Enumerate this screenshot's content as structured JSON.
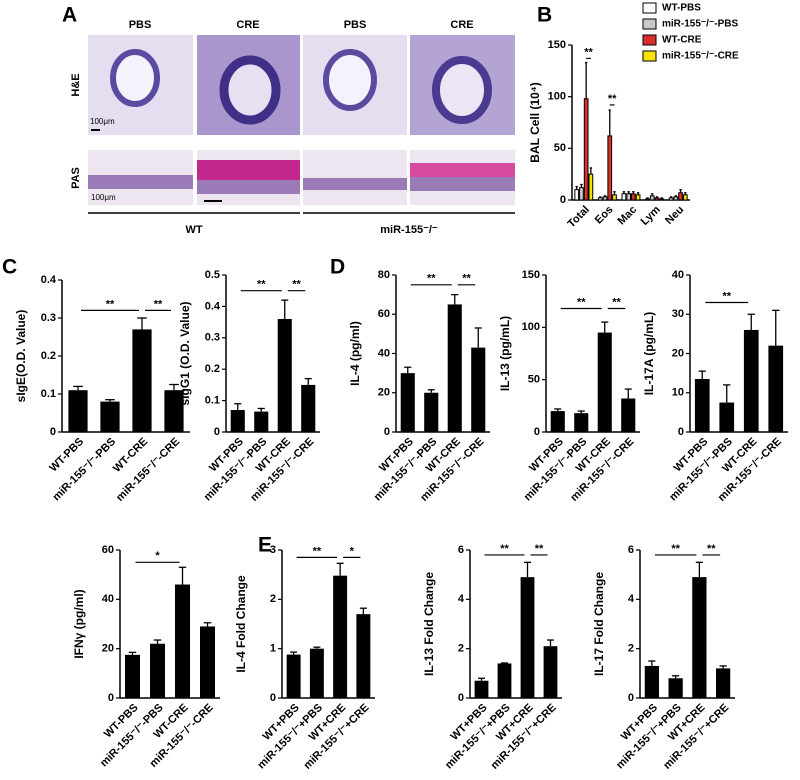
{
  "panels": [
    "A",
    "B",
    "C",
    "D",
    "E"
  ],
  "panel_a": {
    "columns": [
      "PBS",
      "CRE",
      "PBS",
      "CRE"
    ],
    "rows": [
      "H&E",
      "PAS"
    ],
    "scale_bars": [
      "100μm",
      "100μm"
    ],
    "groups": [
      "WT",
      "miR-155⁻/⁻"
    ]
  },
  "chart_data": [
    {
      "type": "bar",
      "ylabel": "BAL Cell (10⁴)",
      "categories": [
        "Total",
        "Eos",
        "Mac",
        "Lym",
        "Neu"
      ],
      "series": [
        {
          "name": "WT-PBS",
          "color": "#ffffff",
          "values": [
            10,
            2,
            6,
            1,
            2
          ],
          "errors": [
            3,
            1,
            2,
            1,
            1
          ]
        },
        {
          "name": "miR-155⁻/⁻-PBS",
          "color": "#c8c8c8",
          "values": [
            12,
            3,
            6,
            4,
            3
          ],
          "errors": [
            3,
            1,
            2,
            2,
            1
          ]
        },
        {
          "name": "WT-CRE",
          "color": "#d9302c",
          "values": [
            98,
            62,
            6,
            2,
            7
          ],
          "errors": [
            35,
            25,
            2,
            1,
            3
          ]
        },
        {
          "name": "miR-155⁻/⁻-CRE",
          "color": "#f5e400",
          "values": [
            25,
            5,
            5,
            1,
            5
          ],
          "errors": [
            6,
            3,
            2,
            1,
            2
          ]
        }
      ],
      "ylim": [
        0,
        150
      ],
      "yticks": [
        0,
        50,
        100,
        150
      ],
      "annotations": [
        {
          "category": "Total",
          "from": "WT-CRE",
          "to": "miR-155⁻/⁻-CRE",
          "y": 137,
          "label": "**"
        },
        {
          "category": "Eos",
          "from": "WT-CRE",
          "to": "miR-155⁻/⁻-CRE",
          "y": 92,
          "label": "**"
        }
      ]
    },
    {
      "type": "bar",
      "ylabel": "sIgE(O.D. Value)",
      "categories": [
        "WT-PBS",
        "miR-155⁻/⁻-PBS",
        "WT-CRE",
        "miR-155⁻/⁻-CRE"
      ],
      "values": [
        0.11,
        0.08,
        0.27,
        0.11
      ],
      "errors": [
        0.01,
        0.005,
        0.03,
        0.015
      ],
      "color": "#000000",
      "ylim": [
        0,
        0.4
      ],
      "yticks": [
        0,
        0.1,
        0.2,
        0.3,
        0.4
      ],
      "annotations": [
        {
          "from": "WT-PBS",
          "to": "WT-CRE",
          "y": 0.32,
          "label": "**"
        },
        {
          "from": "WT-CRE",
          "to": "miR-155⁻/⁻-CRE",
          "y": 0.32,
          "label": "**"
        }
      ]
    },
    {
      "type": "bar",
      "ylabel": "sIgG1 (O.D. Value)",
      "categories": [
        "WT-PBS",
        "miR-155⁻/⁻-PBS",
        "WT-CRE",
        "miR-155⁻/⁻-CRE"
      ],
      "values": [
        0.07,
        0.065,
        0.36,
        0.15
      ],
      "errors": [
        0.02,
        0.01,
        0.06,
        0.02
      ],
      "color": "#000000",
      "ylim": [
        0,
        0.5
      ],
      "yticks": [
        0,
        0.1,
        0.2,
        0.3,
        0.4,
        0.5
      ],
      "annotations": [
        {
          "from": "WT-PBS",
          "to": "WT-CRE",
          "y": 0.45,
          "label": "**"
        },
        {
          "from": "WT-CRE",
          "to": "miR-155⁻/⁻-CRE",
          "y": 0.45,
          "label": "**"
        }
      ]
    },
    {
      "type": "bar",
      "ylabel": "IL-4 (pg/ml)",
      "categories": [
        "WT-PBS",
        "miR-155⁻/⁻-PBS",
        "WT-CRE",
        "miR-155⁻/⁻-CRE"
      ],
      "values": [
        30,
        20,
        65,
        43
      ],
      "errors": [
        3,
        1.5,
        5,
        10
      ],
      "color": "#000000",
      "ylim": [
        0,
        80
      ],
      "yticks": [
        0,
        20,
        40,
        60,
        80
      ],
      "annotations": [
        {
          "from": "WT-PBS",
          "to": "WT-CRE",
          "y": 75,
          "label": "**"
        },
        {
          "from": "WT-CRE",
          "to": "miR-155⁻/⁻-CRE",
          "y": 75,
          "label": "**"
        }
      ]
    },
    {
      "type": "bar",
      "ylabel": "IL-13 (pg/mL)",
      "categories": [
        "WT-PBS",
        "miR-155⁻/⁻-PBS",
        "WT-CRE",
        "miR-155⁻/⁻-CRE"
      ],
      "values": [
        20,
        18,
        95,
        32
      ],
      "errors": [
        2,
        2,
        10,
        9
      ],
      "color": "#000000",
      "ylim": [
        0,
        150
      ],
      "yticks": [
        0,
        50,
        100,
        150
      ],
      "annotations": [
        {
          "from": "WT-PBS",
          "to": "WT-CRE",
          "y": 118,
          "label": "**"
        },
        {
          "from": "WT-CRE",
          "to": "miR-155⁻/⁻-CRE",
          "y": 118,
          "label": "**"
        }
      ]
    },
    {
      "type": "bar",
      "ylabel": "IL-17A (pg/mL)",
      "categories": [
        "WT-PBS",
        "miR-155⁻/⁻-PBS",
        "WT-CRE",
        "miR-155⁻/⁻-CRE"
      ],
      "values": [
        13.5,
        7.5,
        26,
        22
      ],
      "errors": [
        2,
        4.5,
        4,
        9
      ],
      "color": "#000000",
      "ylim": [
        0,
        40
      ],
      "yticks": [
        0,
        10,
        20,
        30,
        40
      ],
      "annotations": [
        {
          "from": "WT-PBS",
          "to": "WT-CRE",
          "y": 33,
          "label": "**"
        }
      ]
    },
    {
      "type": "bar",
      "ylabel": "IFNγ (pg/ml)",
      "categories": [
        "WT-PBS",
        "miR-155⁻/⁻-PBS",
        "WT-CRE",
        "miR-155⁻/⁻-CRE"
      ],
      "values": [
        17.5,
        22,
        46,
        29
      ],
      "errors": [
        1,
        1.5,
        7,
        1.5
      ],
      "color": "#000000",
      "ylim": [
        0,
        60
      ],
      "yticks": [
        0,
        20,
        40,
        60
      ],
      "annotations": [
        {
          "from": "WT-PBS",
          "to": "WT-CRE",
          "y": 55,
          "label": "*"
        }
      ]
    },
    {
      "type": "bar",
      "ylabel": "IL-4 Fold Change",
      "categories": [
        "WT+PBS",
        "miR-155⁻/⁻+PBS",
        "WT+CRE",
        "miR-155⁻/⁻+CRE"
      ],
      "values": [
        0.88,
        1.0,
        2.48,
        1.7
      ],
      "errors": [
        0.05,
        0.03,
        0.25,
        0.12
      ],
      "color": "#000000",
      "ylim": [
        0,
        3
      ],
      "yticks": [
        0,
        1,
        2,
        3
      ],
      "annotations": [
        {
          "from": "WT+PBS",
          "to": "WT+CRE",
          "y": 2.85,
          "label": "**"
        },
        {
          "from": "WT+CRE",
          "to": "miR-155⁻/⁻+CRE",
          "y": 2.85,
          "label": "*"
        }
      ]
    },
    {
      "type": "bar",
      "ylabel": "IL-13 Fold Change",
      "categories": [
        "WT+PBS",
        "miR-155⁻/⁻+PBS",
        "WT+CRE",
        "miR-155⁻/⁻+CRE"
      ],
      "values": [
        0.7,
        1.4,
        4.9,
        2.1
      ],
      "errors": [
        0.1,
        0.02,
        0.6,
        0.25
      ],
      "color": "#000000",
      "ylim": [
        0,
        6
      ],
      "yticks": [
        0,
        2,
        4,
        6
      ],
      "annotations": [
        {
          "from": "WT+PBS",
          "to": "WT+CRE",
          "y": 5.8,
          "label": "**"
        },
        {
          "from": "WT+CRE",
          "to": "miR-155⁻/⁻+CRE",
          "y": 5.8,
          "label": "**"
        }
      ]
    },
    {
      "type": "bar",
      "ylabel": "IL-17 Fold Change",
      "categories": [
        "WT+PBS",
        "miR-155⁻/⁻+PBS",
        "WT+CRE",
        "miR-155⁻/⁻+CRE"
      ],
      "values": [
        1.3,
        0.8,
        4.9,
        1.2
      ],
      "errors": [
        0.2,
        0.1,
        0.6,
        0.1
      ],
      "color": "#000000",
      "ylim": [
        0,
        6
      ],
      "yticks": [
        0,
        2,
        4,
        6
      ],
      "annotations": [
        {
          "from": "WT+PBS",
          "to": "WT+CRE",
          "y": 5.8,
          "label": "**"
        },
        {
          "from": "WT+CRE",
          "to": "miR-155⁻/⁻+CRE",
          "y": 5.8,
          "label": "**"
        }
      ]
    }
  ]
}
